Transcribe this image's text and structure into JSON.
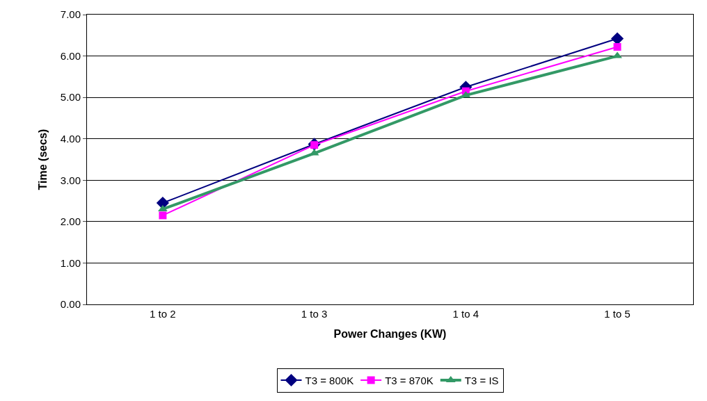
{
  "chart_data": {
    "type": "line",
    "xlabel": "Power Changes (KW)",
    "ylabel": "Time (secs)",
    "categories": [
      "1 to 2",
      "1 to 3",
      "1 to 4",
      "1 to 5"
    ],
    "series": [
      {
        "name": "T3 = 800K",
        "color": "#000080",
        "marker": "diamond",
        "values": [
          2.45,
          3.87,
          5.25,
          6.42
        ]
      },
      {
        "name": "T3 = 870K",
        "color": "#ff00ff",
        "marker": "square",
        "values": [
          2.15,
          3.85,
          5.15,
          6.22
        ]
      },
      {
        "name": "T3 = IS",
        "color": "#339966",
        "marker": "triangle",
        "values": [
          2.3,
          3.65,
          5.05,
          6.0
        ]
      }
    ],
    "ylim": [
      0,
      7
    ],
    "yticks": [
      {
        "value": 0,
        "label": "0.00"
      },
      {
        "value": 1,
        "label": "1.00"
      },
      {
        "value": 2,
        "label": "2.00"
      },
      {
        "value": 3,
        "label": "3.00"
      },
      {
        "value": 4,
        "label": "4.00"
      },
      {
        "value": 5,
        "label": "5.00"
      },
      {
        "value": 6,
        "label": "6.00"
      },
      {
        "value": 7,
        "label": "7.00"
      }
    ],
    "grid": "y",
    "legend": "bottom"
  }
}
